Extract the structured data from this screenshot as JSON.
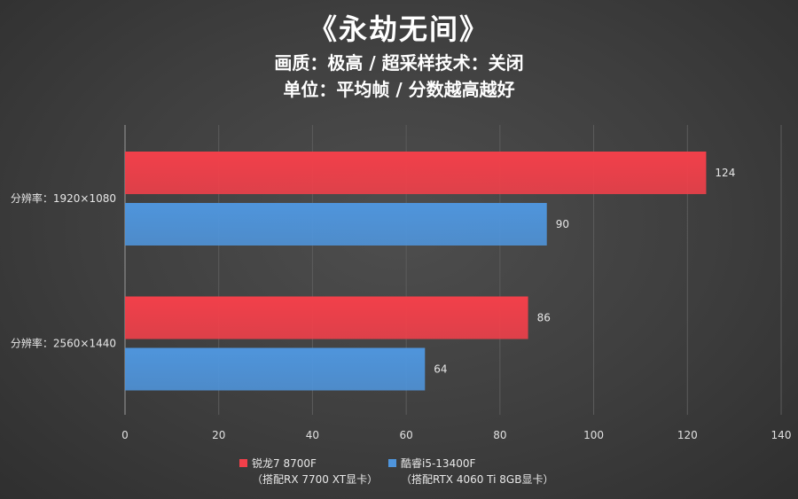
{
  "title": "《永劫无间》",
  "subtitle1": "画质：极高 / 超采样技术：关闭",
  "subtitle2": "单位：平均帧 / 分数越高越好",
  "chart_data": {
    "type": "bar",
    "orientation": "horizontal",
    "categories": [
      "分辨率：1920×1080",
      "分辨率：2560×1440"
    ],
    "series": [
      {
        "name": "锐龙7 8700F",
        "note": "（搭配RX 7700 XT显卡）",
        "color": "#f2404a",
        "values": [
          124,
          86
        ]
      },
      {
        "name": "酷睿i5-13400F",
        "note": "（搭配RTX 4060 Ti 8GB显卡）",
        "color": "#4f95dc",
        "values": [
          90,
          64
        ]
      }
    ],
    "xlim": [
      0,
      140
    ],
    "xticks": [
      0,
      20,
      40,
      60,
      80,
      100,
      120,
      140
    ],
    "grid": true,
    "legend_position": "bottom"
  }
}
